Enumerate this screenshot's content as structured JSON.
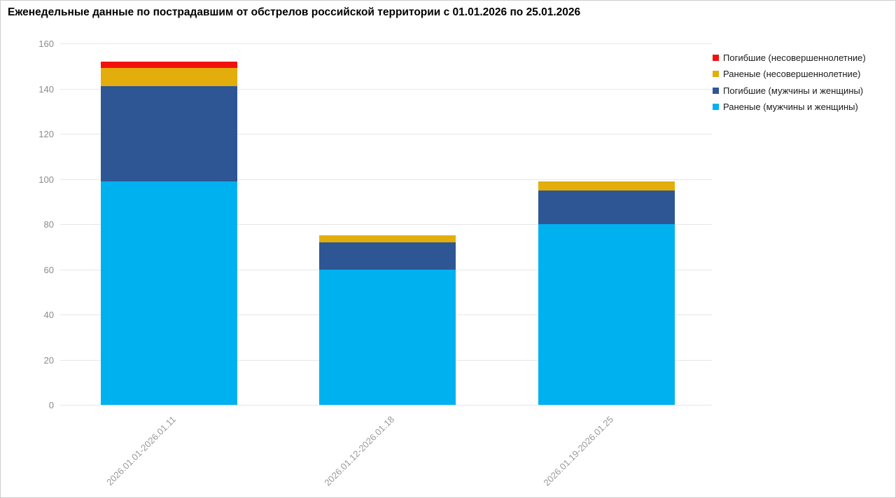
{
  "title": "Еженедельные данные по пострадавшим от обстрелов российской территории с 01.01.2026 по 25.01.2026",
  "chart_data": {
    "type": "bar",
    "stacked": true,
    "title": "Еженедельные данные по пострадавшим от обстрелов российской территории с 01.01.2026 по 25.01.2026",
    "categories": [
      "2026.01.01-2026.01.11",
      "2026.01.12-2026.01.18",
      "2026.01.19-2026.01.25"
    ],
    "series": [
      {
        "name": "Раненые (мужчины и женщины)",
        "color": "#00b1f0",
        "values": [
          99,
          60,
          80
        ]
      },
      {
        "name": "Погибшие (мужчины и женщины)",
        "color": "#2e5695",
        "values": [
          42,
          12,
          15
        ]
      },
      {
        "name": "Раненые (несовершеннолетние)",
        "color": "#e3ae0c",
        "values": [
          8,
          3,
          4
        ]
      },
      {
        "name": "Погибшие (несовершеннолетние)",
        "color": "#f2120d",
        "values": [
          3,
          0,
          0
        ]
      }
    ],
    "totals": [
      152,
      75,
      99
    ],
    "ylim": [
      0,
      160
    ],
    "yticks": [
      0,
      20,
      40,
      60,
      80,
      100,
      120,
      140,
      160
    ],
    "xlabel": "",
    "ylabel": "",
    "grid": "horizontal",
    "legend_position": "top-right",
    "legend_order_top_to_bottom": [
      "Погибшие (несовершеннолетние)",
      "Раненые (несовершеннолетние)",
      "Погибшие (мужчины и женщины)",
      "Раненые (мужчины и женщины)"
    ],
    "colors": {
      "grid": "#e7e7e7",
      "axis_text": "#8c8c8c",
      "legend_text": "#1b1b1b",
      "background": "#ffffff",
      "border": "#cccccc"
    }
  }
}
